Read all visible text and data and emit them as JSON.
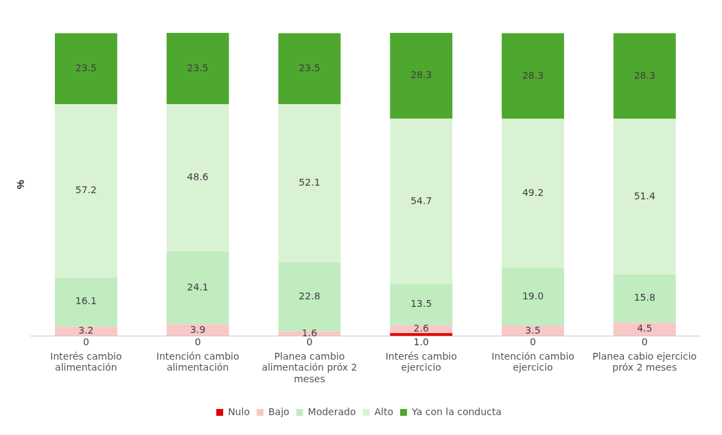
{
  "chart_data": {
    "type": "bar",
    "stacked": true,
    "ylabel": "%",
    "tick_labels": "x",
    "ylim": [
      0,
      100.1
    ],
    "legend": "bottom",
    "grid": false,
    "categories": [
      "Interés cambio alimentación",
      "Intención cambio alimentación",
      "Planea cambio alimentación próx 2 meses",
      "Interés cambio ejercicio",
      "Intención cambio ejercicio",
      "Planea cabio ejercicio próx 2 meses"
    ],
    "series": [
      {
        "name": "Nulo",
        "color": "#e00000",
        "values": [
          0,
          0,
          0,
          1.0,
          0,
          0
        ],
        "value_labels": [
          "0",
          "0",
          "0",
          "1.0",
          "0",
          "0"
        ]
      },
      {
        "name": "Bajo",
        "color": "#f8c8c8",
        "values": [
          3.2,
          3.9,
          1.6,
          2.6,
          3.5,
          4.5
        ],
        "value_labels": [
          "3.2",
          "3.9",
          "1.6",
          "2.6",
          "3.5",
          "4.5"
        ]
      },
      {
        "name": "Moderado",
        "color": "#c0ecc0",
        "values": [
          16.1,
          24.1,
          22.8,
          13.5,
          19.0,
          15.8
        ],
        "value_labels": [
          "16.1",
          "24.1",
          "22.8",
          "13.5",
          "19.0",
          "15.8"
        ]
      },
      {
        "name": "Alto",
        "color": "#daf2d4",
        "values": [
          57.2,
          48.6,
          52.1,
          54.7,
          49.2,
          51.4
        ],
        "value_labels": [
          "57.2",
          "48.6",
          "52.1",
          "54.7",
          "49.2",
          "51.4"
        ]
      },
      {
        "name": "Ya con la conducta",
        "color": "#4ea72e",
        "values": [
          23.5,
          23.5,
          23.5,
          28.3,
          28.3,
          28.3
        ],
        "value_labels": [
          "23.5",
          "23.5",
          "23.5",
          "28.3",
          "28.3",
          "28.3"
        ]
      }
    ]
  }
}
